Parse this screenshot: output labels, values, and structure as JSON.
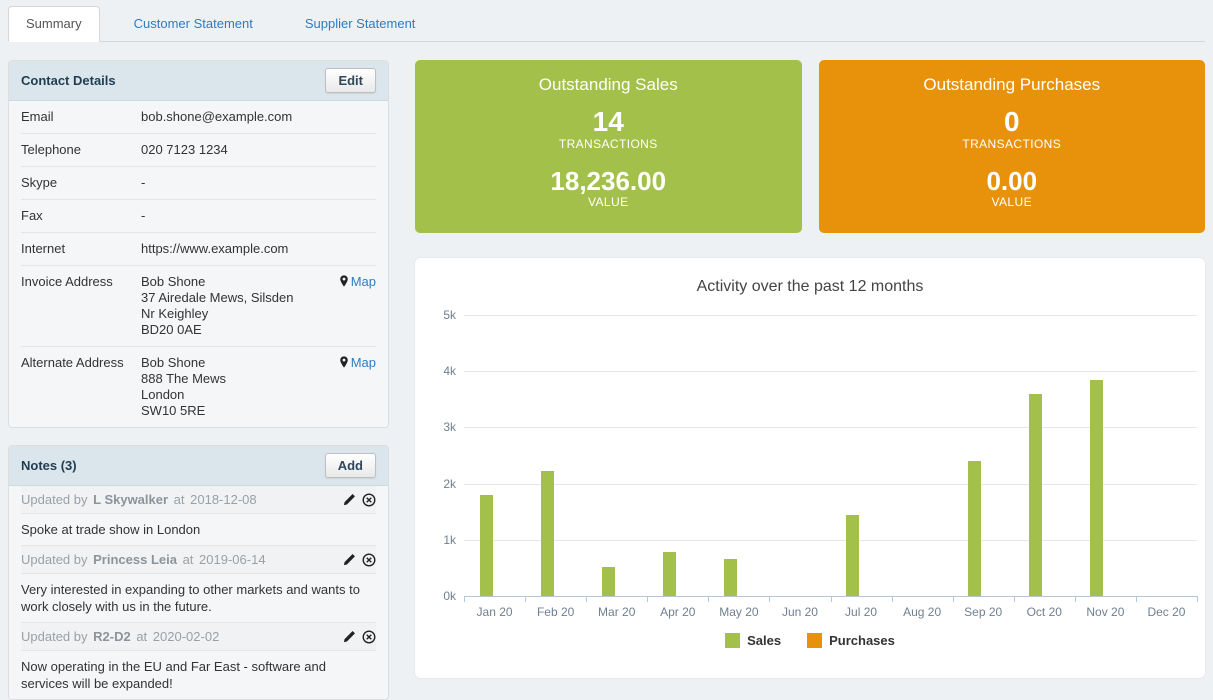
{
  "tabs": [
    {
      "label": "Summary",
      "active": true
    },
    {
      "label": "Customer Statement",
      "active": false
    },
    {
      "label": "Supplier Statement",
      "active": false
    }
  ],
  "contact": {
    "title": "Contact Details",
    "edit_label": "Edit",
    "rows": [
      {
        "label": "Email",
        "value": "bob.shone@example.com"
      },
      {
        "label": "Telephone",
        "value": "020 7123 1234"
      },
      {
        "label": "Skype",
        "value": "-"
      },
      {
        "label": "Fax",
        "value": "-"
      },
      {
        "label": "Internet",
        "value": "https://www.example.com"
      }
    ],
    "invoice_address": {
      "label": "Invoice Address",
      "lines": [
        "Bob Shone",
        "37 Airedale Mews, Silsden",
        "Nr Keighley",
        "BD20 0AE"
      ],
      "map_label": "Map"
    },
    "alternate_address": {
      "label": "Alternate Address",
      "lines": [
        "Bob Shone",
        "888 The Mews",
        "London",
        "SW10 5RE"
      ],
      "map_label": "Map"
    }
  },
  "notes": {
    "title": "Notes (3)",
    "add_label": "Add",
    "meta_prefix": "Updated by",
    "meta_infix": "at",
    "items": [
      {
        "name": "L Skywalker",
        "date": "2018-12-08",
        "text": "Spoke at trade show in London"
      },
      {
        "name": "Princess Leia",
        "date": "2019-06-14",
        "text": "Very interested in expanding to other markets and wants to work closely with us in the future."
      },
      {
        "name": "R2-D2",
        "date": "2020-02-02",
        "text": "Now operating in the EU and Far East - software and services will be expanded!"
      }
    ]
  },
  "cards": {
    "sales": {
      "title": "Outstanding Sales",
      "count": "14",
      "count_label": "TRANSACTIONS",
      "value": "18,236.00",
      "value_label": "VALUE",
      "color": "#a3c14a"
    },
    "purchases": {
      "title": "Outstanding Purchases",
      "count": "0",
      "count_label": "TRANSACTIONS",
      "value": "0.00",
      "value_label": "VALUE",
      "color": "#e8920b"
    }
  },
  "chart_data": {
    "type": "bar",
    "title": "Activity over the past 12 months",
    "categories": [
      "Jan 20",
      "Feb 20",
      "Mar 20",
      "Apr 20",
      "May 20",
      "Jun 20",
      "Jul 20",
      "Aug 20",
      "Sep 20",
      "Oct 20",
      "Nov 20",
      "Dec 20"
    ],
    "series": [
      {
        "name": "Sales",
        "color": "#a3c14a",
        "values": [
          1790,
          2230,
          520,
          780,
          660,
          0,
          1440,
          0,
          2400,
          3590,
          3840,
          0
        ]
      },
      {
        "name": "Purchases",
        "color": "#e8920b",
        "values": [
          0,
          0,
          0,
          0,
          0,
          0,
          0,
          0,
          0,
          0,
          0,
          0
        ]
      }
    ],
    "ylim": [
      0,
      5000
    ],
    "ytick_labels": [
      "0k",
      "1k",
      "2k",
      "3k",
      "4k",
      "5k"
    ],
    "grid": true,
    "legend_position": "bottom"
  }
}
